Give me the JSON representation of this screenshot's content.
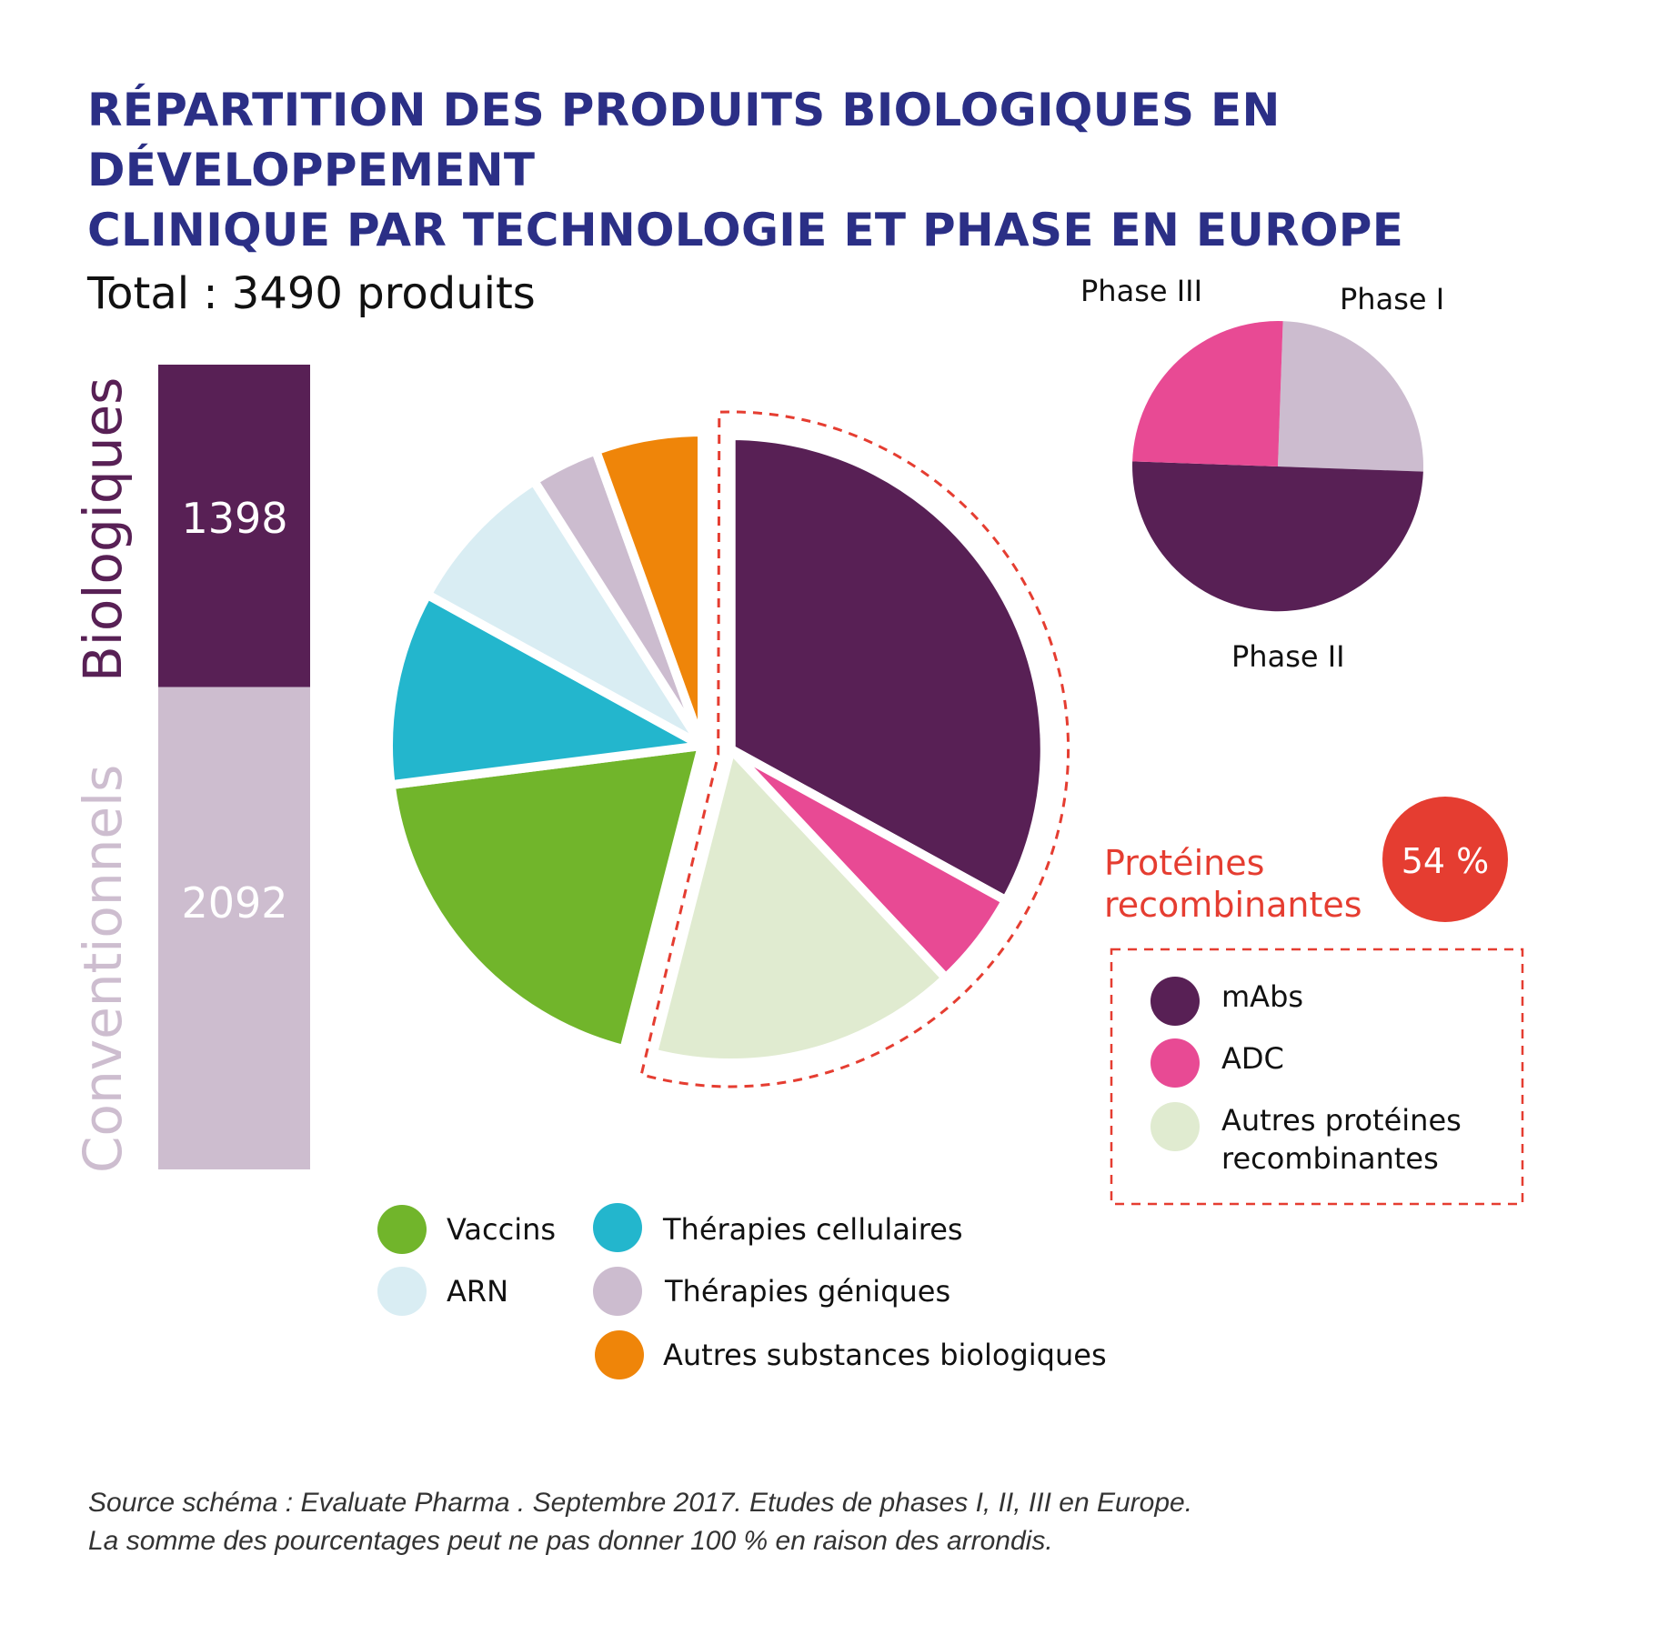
{
  "title": {
    "line1": "RÉPARTITION DES PRODUITS BIOLOGIQUES EN DÉVELOPPEMENT",
    "line2": "CLINIQUE PAR TECHNOLOGIE ET PHASE EN EUROPE"
  },
  "total": "Total : 3490 produits",
  "colors": {
    "title": "#2b2f86",
    "mabs": "#582055",
    "adc": "#e84a94",
    "autres_proteines": "#e0ebd0",
    "vaccins": "#71b52b",
    "therapies_cellulaires": "#23b6cd",
    "arn": "#d9edf3",
    "therapies_geniques": "#ccbccf",
    "autres_substances": "#ef8509",
    "conventionnels": "#cdbdcf",
    "accent_red": "#e53d31"
  },
  "chart_data": [
    {
      "type": "bar",
      "stacked": true,
      "categories": [
        "Biologiques",
        "Conventionnels"
      ],
      "values": [
        1398,
        2092
      ],
      "labels": [
        "1398",
        "2092"
      ],
      "total": 3490
    },
    {
      "type": "pie",
      "categories": [
        "mAbs",
        "ADC",
        "Autres protéines recombinantes",
        "Vaccins",
        "Thérapies cellulaires",
        "ARN",
        "Thérapies géniques",
        "Autres substances biologiques"
      ],
      "values": [
        33,
        5,
        16,
        19,
        10,
        8,
        3.5,
        5.5
      ],
      "exploded": [
        "mAbs",
        "ADC",
        "Autres protéines recombinantes"
      ],
      "group_label": "Protéines recombinantes",
      "group_value": "54 %"
    },
    {
      "type": "pie",
      "categories": [
        "Phase I",
        "Phase II",
        "Phase III"
      ],
      "values": [
        25,
        50,
        25
      ]
    }
  ],
  "legend": {
    "vaccins": "Vaccins",
    "therapies_cellulaires": "Thérapies cellulaires",
    "arn": "ARN",
    "therapies_geniques": "Thérapies géniques",
    "autres_substances": "Autres substances biologiques",
    "mabs": "mAbs",
    "adc": "ADC",
    "autres_proteines_1": "Autres protéines",
    "autres_proteines_2": "recombinantes"
  },
  "proteines": {
    "label1": "Protéines",
    "label2": "recombinantes",
    "value": "54 %"
  },
  "phases": {
    "phase1": "Phase I",
    "phase2": "Phase II",
    "phase3": "Phase III"
  },
  "source": {
    "line1": "Source schéma : Evaluate Pharma . Septembre 2017. Etudes de phases I, II, III en Europe.",
    "line2": "La somme des pourcentages peut ne pas donner 100 % en raison des arrondis."
  }
}
